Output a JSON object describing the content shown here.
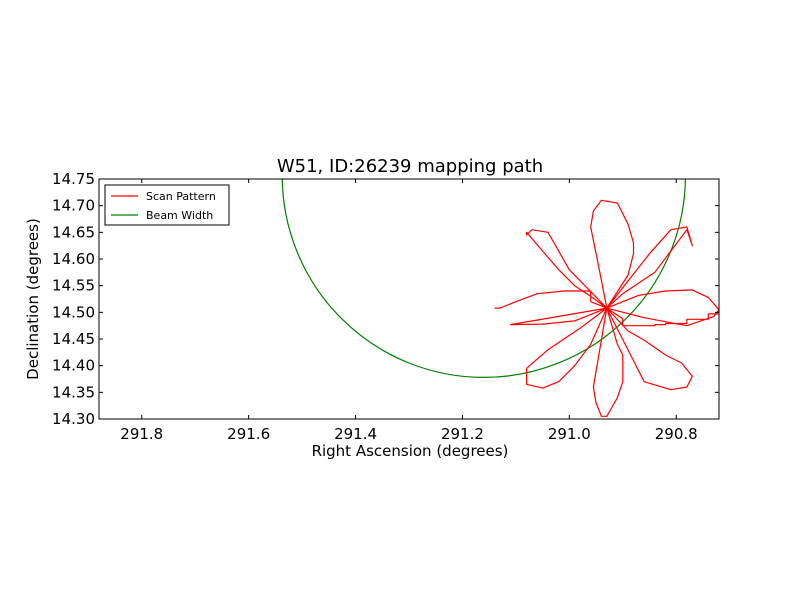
{
  "chart_data": {
    "type": "line",
    "title": "W51, ID:26239 mapping path",
    "xlabel": "Right Ascension (degrees)",
    "ylabel": "Declination (degrees)",
    "xlim": [
      291.88,
      290.72
    ],
    "ylim": [
      14.3,
      14.75
    ],
    "x_inverted": true,
    "grid": false,
    "legend_position": "top-left",
    "xticks": [
      291.8,
      291.6,
      291.4,
      291.2,
      291.0,
      290.8
    ],
    "xtick_labels": [
      "291.8",
      "291.6",
      "291.4",
      "291.2",
      "291.0",
      "290.8"
    ],
    "yticks": [
      14.3,
      14.35,
      14.4,
      14.45,
      14.5,
      14.55,
      14.6,
      14.65,
      14.7,
      14.75
    ],
    "ytick_labels": [
      "14.30",
      "14.35",
      "14.40",
      "14.45",
      "14.50",
      "14.55",
      "14.60",
      "14.65",
      "14.70",
      "14.75"
    ],
    "series": [
      {
        "name": "Scan Pattern",
        "color": "#ff0000",
        "x": [
          291.14,
          291.13,
          291.1,
          291.06,
          291.01,
          290.96,
          290.96,
          290.93,
          290.96,
          290.99,
          291.02,
          291.05,
          291.08,
          291.08,
          291.07,
          291.04,
          291.0,
          290.93,
          290.94,
          290.95,
          290.96,
          290.955,
          290.94,
          290.91,
          290.89,
          290.88,
          290.88,
          290.89,
          290.93,
          290.9,
          290.87,
          290.84,
          290.81,
          290.78,
          290.77,
          290.78,
          290.81,
          290.85,
          290.93,
          290.87,
          290.82,
          290.77,
          290.74,
          290.72,
          290.73,
          290.78,
          290.86,
          290.93,
          290.89,
          290.86,
          290.82,
          290.79,
          290.77,
          290.78,
          290.81,
          290.86,
          290.93,
          290.91,
          290.9,
          290.9,
          290.91,
          290.93,
          290.94,
          290.95,
          290.955,
          290.93,
          290.96,
          290.99,
          291.02,
          291.05,
          291.08,
          291.08,
          291.04,
          290.98,
          290.93,
          290.99,
          291.05,
          291.11,
          290.93,
          290.9,
          290.9,
          290.84,
          290.84,
          290.82,
          290.82,
          290.78,
          290.78,
          290.74,
          290.74,
          290.72,
          290.72
        ],
        "y": [
          14.508,
          14.508,
          14.52,
          14.535,
          14.54,
          14.54,
          14.52,
          14.508,
          14.53,
          14.55,
          14.58,
          14.615,
          14.65,
          14.645,
          14.655,
          14.65,
          14.58,
          14.508,
          14.56,
          14.61,
          14.66,
          14.69,
          14.71,
          14.705,
          14.665,
          14.63,
          14.61,
          14.57,
          14.508,
          14.535,
          14.555,
          14.575,
          14.615,
          14.655,
          14.625,
          14.66,
          14.655,
          14.61,
          14.508,
          14.532,
          14.54,
          14.542,
          14.528,
          14.505,
          14.492,
          14.475,
          14.49,
          14.508,
          14.465,
          14.448,
          14.42,
          14.405,
          14.38,
          14.36,
          14.355,
          14.37,
          14.508,
          14.44,
          14.42,
          14.37,
          14.34,
          14.305,
          14.305,
          14.33,
          14.36,
          14.508,
          14.44,
          14.4,
          14.37,
          14.358,
          14.365,
          14.395,
          14.43,
          14.47,
          14.508,
          14.484,
          14.478,
          14.477,
          14.508,
          14.488,
          14.475,
          14.475,
          14.477,
          14.477,
          14.479,
          14.479,
          14.487,
          14.487,
          14.497,
          14.497,
          14.503
        ]
      },
      {
        "name": "Beam Width",
        "color": "#008000",
        "center": [
          291.16,
          14.756
        ],
        "radius_deg": 0.378
      }
    ]
  }
}
